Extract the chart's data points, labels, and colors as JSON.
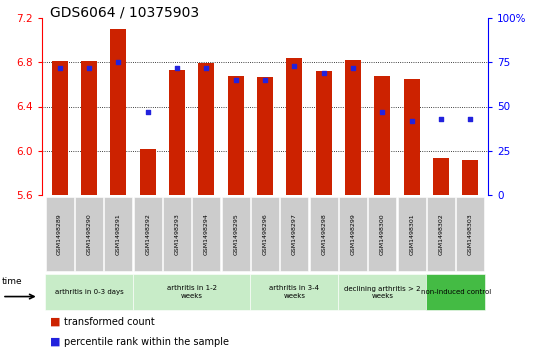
{
  "title": "GDS6064 / 10375903",
  "samples": [
    "GSM1498289",
    "GSM1498290",
    "GSM1498291",
    "GSM1498292",
    "GSM1498293",
    "GSM1498294",
    "GSM1498295",
    "GSM1498296",
    "GSM1498297",
    "GSM1498298",
    "GSM1498299",
    "GSM1498300",
    "GSM1498301",
    "GSM1498302",
    "GSM1498303"
  ],
  "transformed_count": [
    6.81,
    6.81,
    7.1,
    6.02,
    6.73,
    6.79,
    6.68,
    6.67,
    6.84,
    6.72,
    6.82,
    6.68,
    6.65,
    5.93,
    5.92
  ],
  "percentile_rank": [
    72,
    72,
    75,
    47,
    72,
    72,
    65,
    65,
    73,
    69,
    72,
    47,
    42,
    43,
    43
  ],
  "ylim_left": [
    5.6,
    7.2
  ],
  "ylim_right": [
    0,
    100
  ],
  "yticks_left": [
    5.6,
    6.0,
    6.4,
    6.8,
    7.2
  ],
  "yticks_right": [
    0,
    25,
    50,
    75,
    100
  ],
  "groups": [
    {
      "label": "arthritis in 0-3 days",
      "indices": [
        0,
        1,
        2
      ],
      "color": "#c8ecc8"
    },
    {
      "label": "arthritis in 1-2\nweeks",
      "indices": [
        3,
        4,
        5,
        6
      ],
      "color": "#c8ecc8"
    },
    {
      "label": "arthritis in 3-4\nweeks",
      "indices": [
        7,
        8,
        9
      ],
      "color": "#c8ecc8"
    },
    {
      "label": "declining arthritis > 2\nweeks",
      "indices": [
        10,
        11,
        12
      ],
      "color": "#c8ecc8"
    },
    {
      "label": "non-induced control",
      "indices": [
        13,
        14
      ],
      "color": "#44bb44"
    }
  ],
  "bar_color": "#cc2200",
  "dot_color": "#2222dd",
  "bar_bottom": 5.6,
  "bg_color": "#ffffff",
  "legend_red": "transformed count",
  "legend_blue": "percentile rank within the sample",
  "grid_dotted_at": [
    6.0,
    6.4,
    6.8
  ],
  "sample_box_color": "#cccccc",
  "title_fontsize": 10,
  "tick_fontsize": 7.5
}
